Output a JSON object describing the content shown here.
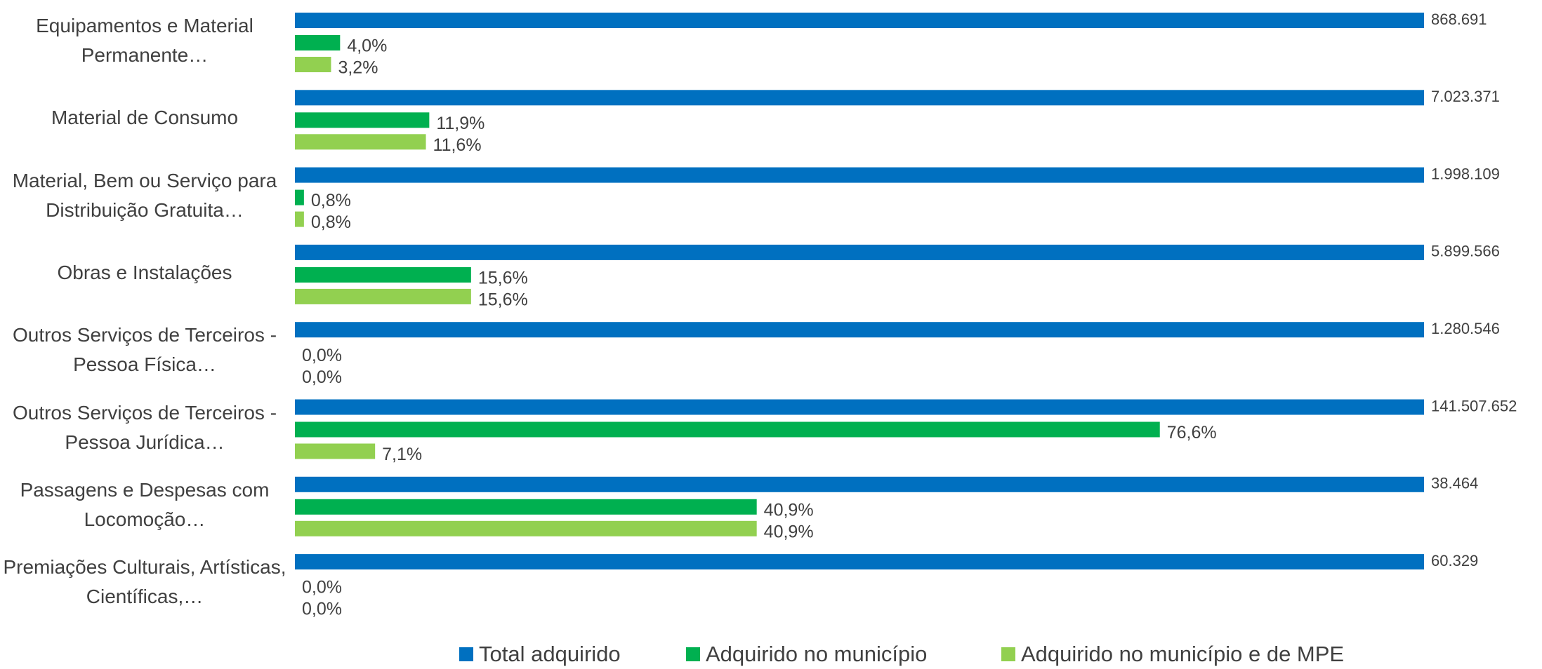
{
  "chart_data": {
    "type": "bar",
    "orientation": "horizontal",
    "categories": [
      "Equipamentos e Material Permanente…",
      "Material de Consumo",
      "Material, Bem ou Serviço para Distribuição Gratuita…",
      "Obras e Instalações",
      "Outros Serviços de Terceiros - Pessoa Física…",
      "Outros Serviços de Terceiros - Pessoa Jurídica…",
      "Passagens e Despesas com Locomoção…",
      "Premiações Culturais, Artísticas, Científicas,…"
    ],
    "xlim": [
      0,
      100
    ],
    "series": [
      {
        "name": "Total adquirido",
        "color": "#0070c0",
        "full_width": true,
        "values": [
          868691,
          7023371,
          1998109,
          5899566,
          1280546,
          141507652,
          38464,
          60329
        ],
        "value_labels": [
          "868.691",
          "7.023.371",
          "1.998.109",
          "5.899.566",
          "1.280.546",
          "141.507.652",
          "38.464",
          "60.329"
        ]
      },
      {
        "name": "Adquirido no município",
        "color": "#00b050",
        "values": [
          4.0,
          11.9,
          0.8,
          15.6,
          0.0,
          76.6,
          40.9,
          0.0
        ],
        "value_labels": [
          "4,0%",
          "11,9%",
          "0,8%",
          "15,6%",
          "0,0%",
          "76,6%",
          "40,9%",
          "0,0%"
        ]
      },
      {
        "name": "Adquirido no município e de MPE",
        "color": "#92d050",
        "values": [
          3.2,
          11.6,
          0.8,
          15.6,
          0.0,
          7.1,
          40.9,
          0.0
        ],
        "value_labels": [
          "3,2%",
          "11,6%",
          "0,8%",
          "15,6%",
          "0,0%",
          "7,1%",
          "40,9%",
          "0,0%"
        ]
      }
    ],
    "legend": "bottom"
  }
}
